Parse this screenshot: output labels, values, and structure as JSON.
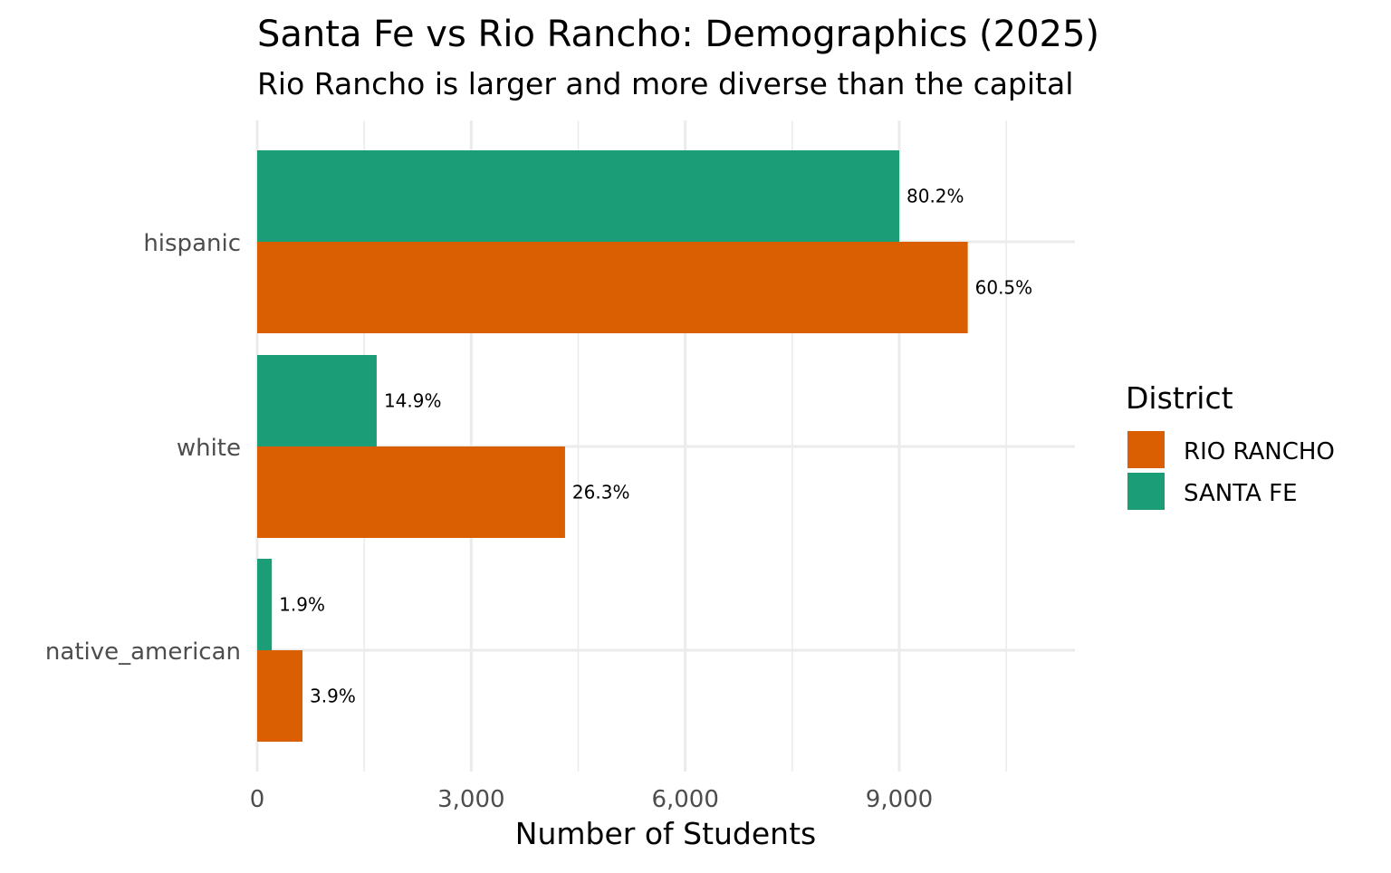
{
  "chart_data": {
    "type": "bar",
    "orientation": "horizontal",
    "title": "Santa Fe vs Rio Rancho: Demographics (2025)",
    "subtitle": "Rio Rancho is larger and more diverse than the capital",
    "xlabel": "Number of Students",
    "ylabel": "",
    "xlim": [
      0,
      11500
    ],
    "x_ticks": [
      0,
      3000,
      6000,
      9000
    ],
    "x_tick_labels": [
      "0",
      "3,000",
      "6,000",
      "9,000"
    ],
    "grid": true,
    "categories": [
      "hispanic",
      "white",
      "native_american"
    ],
    "legend": {
      "title": "District",
      "position": "right",
      "entries": [
        "RIO RANCHO",
        "SANTA FE"
      ]
    },
    "series": [
      {
        "name": "SANTA FE",
        "color": "#1b9e77",
        "values": [
          9000,
          1675,
          205
        ],
        "labels": [
          "80.2%",
          "14.9%",
          "1.9%"
        ]
      },
      {
        "name": "RIO RANCHO",
        "color": "#d95f02",
        "values": [
          9960,
          4315,
          635
        ],
        "labels": [
          "60.5%",
          "26.3%",
          "3.9%"
        ]
      }
    ]
  }
}
